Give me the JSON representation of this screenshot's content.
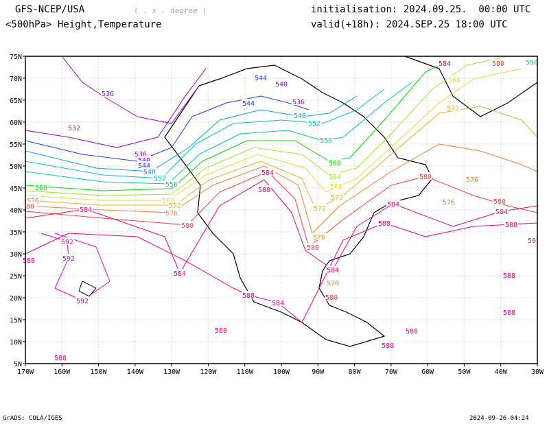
{
  "header": {
    "model": "GFS-NCEP/USA",
    "resolution": "( . x . degree )",
    "field": "<500hPa> Height,Temperature",
    "initialisation": "initialisation: 2024.09.25.  00:00 UTC",
    "valid": "valid(+18h): 2024.SEP.25 18:00 UTC"
  },
  "axes": {
    "lat_labels": [
      "5N",
      "10N",
      "15N",
      "20N",
      "25N",
      "30N",
      "35N",
      "40N",
      "45N",
      "50N",
      "55N",
      "60N",
      "65N",
      "70N",
      "75N"
    ],
    "lon_labels": [
      "170W",
      "160W",
      "150W",
      "140W",
      "130W",
      "120W",
      "110W",
      "100W",
      "90W",
      "80W",
      "70W",
      "60W",
      "50W",
      "40W",
      "30W"
    ]
  },
  "contour_labels": [
    "536",
    "532",
    "536",
    "540",
    "544",
    "548",
    "552",
    "556",
    "560",
    "568",
    "572",
    "576",
    "580",
    "584",
    "576",
    "80",
    "544",
    "540",
    "536",
    "544",
    "548",
    "552",
    "556",
    "560",
    "564",
    "568",
    "572",
    "572",
    "576",
    "580",
    "584",
    "588",
    "584",
    "588",
    "580",
    "576",
    "576",
    "580",
    "584",
    "588",
    "584",
    "580",
    "556",
    "568",
    "572",
    "592",
    "592",
    "588",
    "592",
    "584",
    "588",
    "584",
    "588",
    "584",
    "576",
    "580",
    "588",
    "588",
    "588",
    "588",
    "588",
    "59"
  ],
  "colors": {
    "536": "#a000c8",
    "540": "#8200dc",
    "544": "#1e3cff",
    "548": "#00a0ff",
    "552": "#00c8c8",
    "556": "#00d28c",
    "560": "#00dc00",
    "564": "#a0e632",
    "568": "#e6dc32",
    "572": "#e6af2d",
    "576": "#f08228",
    "580": "#fa3c3c",
    "584": "#f00082",
    "588": "#f00082",
    "592": "#f000c8"
  },
  "footer": {
    "left": "GrADS: COLA/IGES",
    "right": "2024-09-26-04:24"
  }
}
